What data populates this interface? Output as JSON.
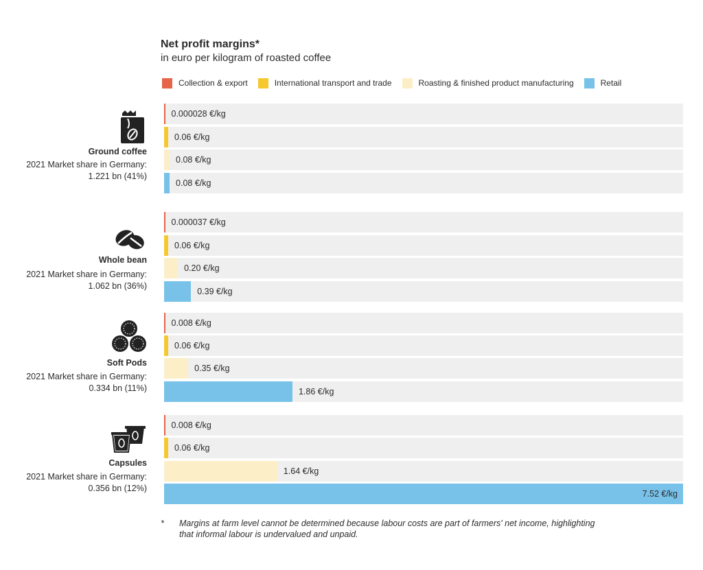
{
  "title": "Net profit margins*",
  "subtitle": "in euro per kilogram of roasted coffee",
  "legend": [
    {
      "label": "Collection & export",
      "color": "#e5644a"
    },
    {
      "label": "International transport and trade",
      "color": "#f5c82e"
    },
    {
      "label": "Roasting & finished product manufacturing",
      "color": "#fcefc7"
    },
    {
      "label": "Retail",
      "color": "#78c2ea"
    }
  ],
  "groups": [
    {
      "name": "Ground coffee",
      "share_label": "2021 Market share in Germany:",
      "share_value": "1.221 bn (41%)",
      "icon": "ground-coffee-bag-icon"
    },
    {
      "name": "Whole bean",
      "share_label": "2021 Market share in Germany:",
      "share_value": "1.062 bn (36%)",
      "icon": "coffee-beans-icon"
    },
    {
      "name": "Soft Pods",
      "share_label": "2021 Market share in Germany:",
      "share_value": "0.334 bn (11%)",
      "icon": "soft-pods-icon"
    },
    {
      "name": "Capsules",
      "share_label": "2021 Market share in Germany:",
      "share_value": "0.356 bn (12%)",
      "icon": "capsules-icon"
    }
  ],
  "chart_data": {
    "type": "bar",
    "orientation": "horizontal",
    "title": "Net profit margins*",
    "subtitle": "in euro per kilogram of roasted coffee",
    "unit": "€/kg",
    "xlim": [
      0,
      7.52
    ],
    "grid": false,
    "legend_position": "top",
    "categories": [
      "Ground coffee",
      "Whole bean",
      "Soft Pods",
      "Capsules"
    ],
    "series": [
      {
        "name": "Collection & export",
        "color": "#e5644a",
        "values": [
          2.8e-05,
          3.7e-05,
          0.008,
          0.008
        ],
        "labels": [
          "0.000028 €/kg",
          "0.000037 €/kg",
          "0.008 €/kg",
          "0.008 €/kg"
        ]
      },
      {
        "name": "International transport and trade",
        "color": "#f5c82e",
        "values": [
          0.06,
          0.06,
          0.06,
          0.06
        ],
        "labels": [
          "0.06 €/kg",
          "0.06 €/kg",
          "0.06 €/kg",
          "0.06 €/kg"
        ]
      },
      {
        "name": "Roasting & finished product manufacturing",
        "color": "#fcefc7",
        "values": [
          0.08,
          0.2,
          0.35,
          1.64
        ],
        "labels": [
          "0.08 €/kg",
          "0.20 €/kg",
          "0.35 €/kg",
          "1.64 €/kg"
        ]
      },
      {
        "name": "Retail",
        "color": "#78c2ea",
        "values": [
          0.08,
          0.39,
          1.86,
          7.52
        ],
        "labels": [
          "0.08 €/kg",
          "0.39 €/kg",
          "1.86 €/kg",
          "7.52 €/kg"
        ]
      }
    ]
  },
  "footnote": {
    "mark": "*",
    "text": "Margins at farm level cannot be determined because labour costs are part of farmers' net income, highlighting that informal labour is undervalued and unpaid."
  }
}
